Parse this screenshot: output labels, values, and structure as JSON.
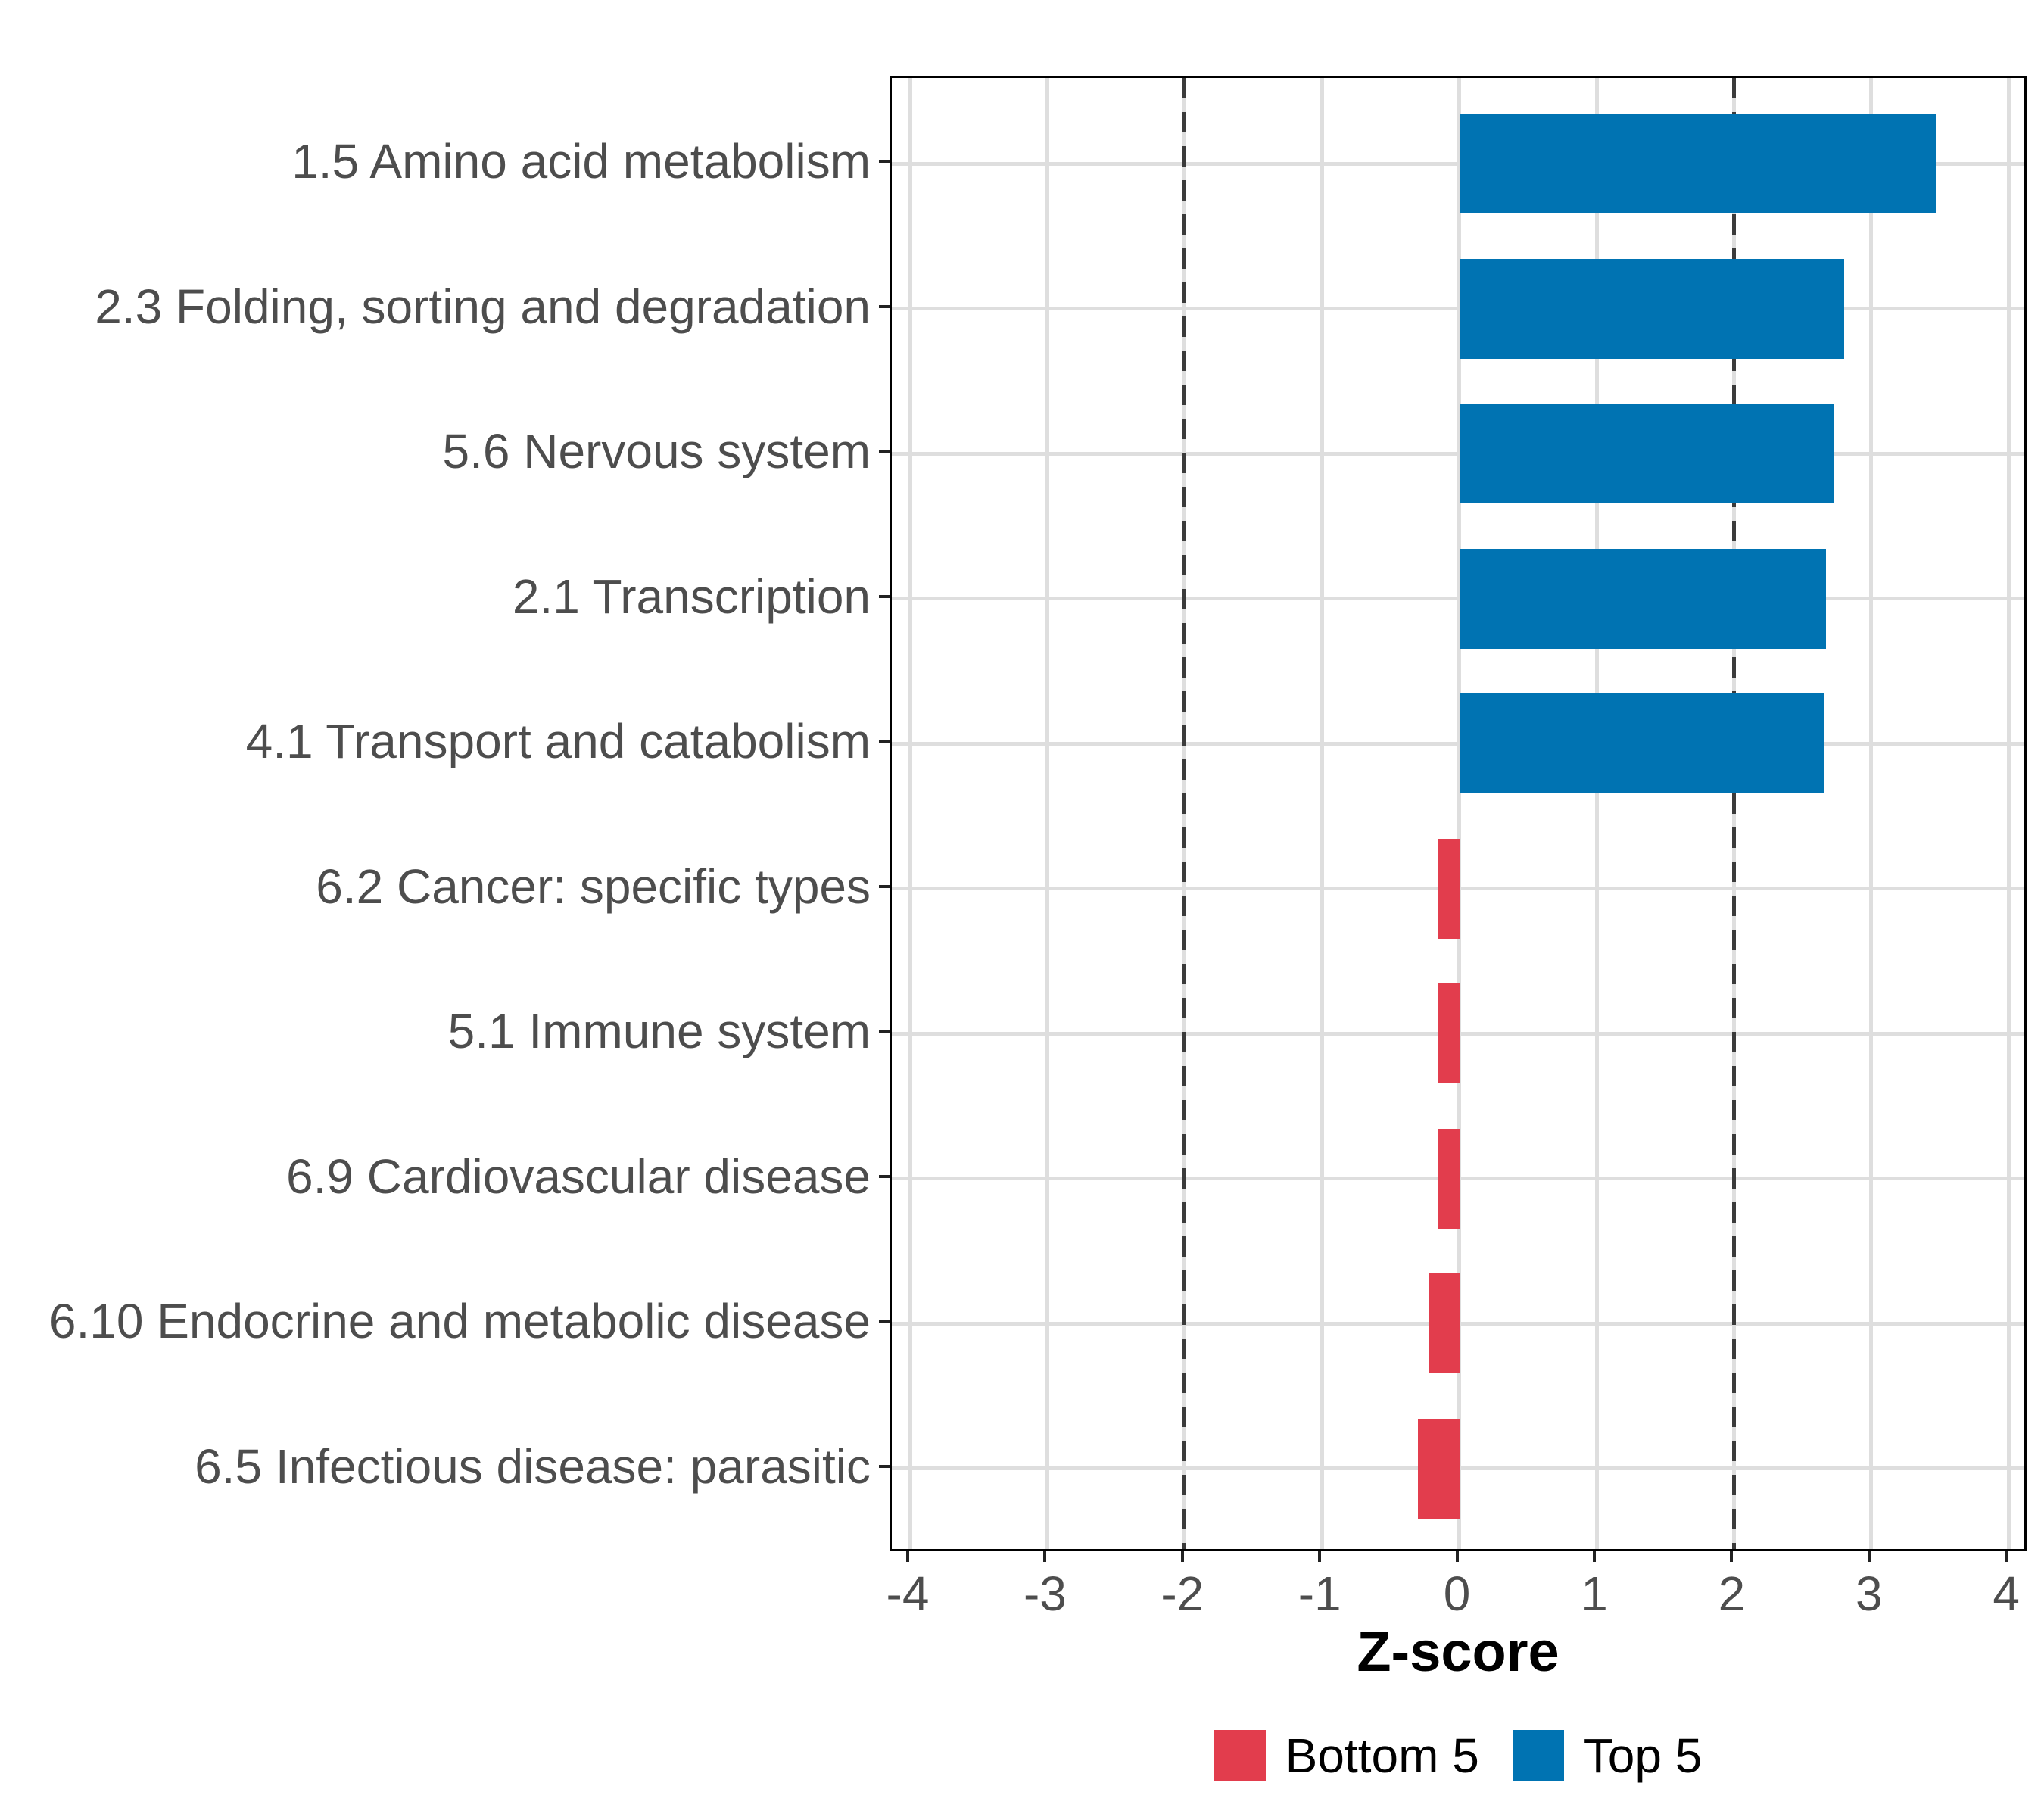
{
  "chart_data": {
    "type": "bar",
    "orientation": "horizontal",
    "title": "",
    "xlabel": "Z-score",
    "ylabel": "",
    "xlim": [
      -4.14,
      4.14
    ],
    "x_ticks": [
      -4,
      -3,
      -2,
      -1,
      0,
      1,
      2,
      3,
      4
    ],
    "threshold_lines": [
      -2,
      2
    ],
    "grid": "major-only",
    "legend_position": "bottom",
    "bars": [
      {
        "category": "1.5 Amino acid metabolism",
        "value": 3.47,
        "group": "Top 5"
      },
      {
        "category": "2.3 Folding, sorting and degradation",
        "value": 2.8,
        "group": "Top 5"
      },
      {
        "category": "5.6 Nervous system",
        "value": 2.73,
        "group": "Top 5"
      },
      {
        "category": "2.1 Transcription",
        "value": 2.67,
        "group": "Top 5"
      },
      {
        "category": "4.1 Transport and catabolism",
        "value": 2.66,
        "group": "Top 5"
      },
      {
        "category": "6.2 Cancer: specific types",
        "value": -0.15,
        "group": "Bottom 5"
      },
      {
        "category": "5.1 Immune system",
        "value": -0.15,
        "group": "Bottom 5"
      },
      {
        "category": "6.9 Cardiovascular disease",
        "value": -0.16,
        "group": "Bottom 5"
      },
      {
        "category": "6.10 Endocrine and metabolic disease",
        "value": -0.22,
        "group": "Bottom 5"
      },
      {
        "category": "6.5 Infectious disease: parasitic",
        "value": -0.3,
        "group": "Bottom 5"
      }
    ],
    "group_colors": {
      "Bottom 5": "#E23D4D",
      "Top 5": "#0073B2"
    }
  },
  "legend": {
    "items": [
      {
        "label": "Bottom 5",
        "color": "#E23D4D"
      },
      {
        "label": "Top 5",
        "color": "#0073B2"
      }
    ]
  },
  "style": {
    "grid_color": "#DEDEDE",
    "threshold_color": "#3B3B3B",
    "axis_text_color": "#4D4D4D",
    "panel_border_color": "#000000",
    "background": "#FFFFFF"
  }
}
